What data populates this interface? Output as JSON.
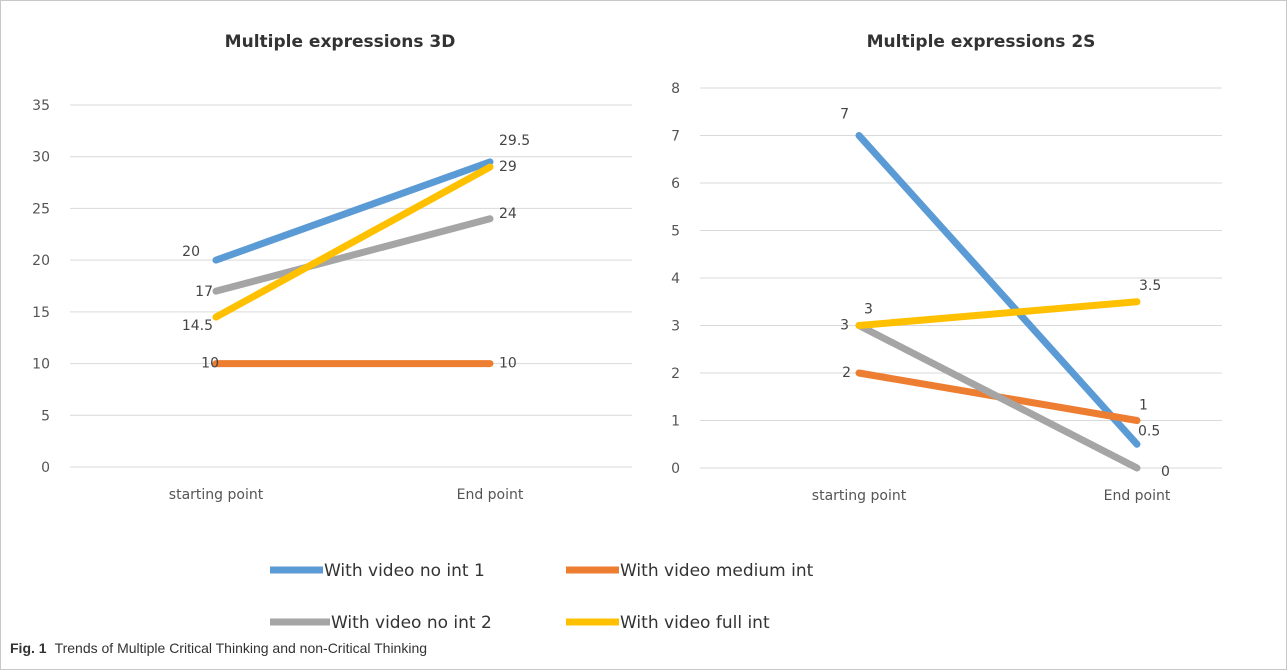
{
  "legend": [
    {
      "label": "With video no int 1",
      "color": "#5B9BD5"
    },
    {
      "label": "With video medium int",
      "color": "#ED7D31"
    },
    {
      "label": "With video no int 2",
      "color": "#A5A5A5"
    },
    {
      "label": "With video full int",
      "color": "#FFC000"
    }
  ],
  "caption": {
    "fig_label": "Fig. 1",
    "text": "Trends of Multiple Critical Thinking and non-Critical Thinking"
  },
  "chart_data": [
    {
      "type": "line",
      "title": "Multiple expressions 3D",
      "categories": [
        "starting point",
        "End point"
      ],
      "ylim": [
        0,
        35
      ],
      "yticks": [
        "0",
        "5",
        "10",
        "15",
        "20",
        "25",
        "30",
        "35"
      ],
      "grid": true,
      "series": [
        {
          "name": "With video no int 1",
          "values": [
            20,
            29.5
          ],
          "labels": [
            "20",
            "29.5"
          ],
          "color": "#5B9BD5"
        },
        {
          "name": "With video medium int",
          "values": [
            10,
            10
          ],
          "labels": [
            "10",
            "10"
          ],
          "color": "#ED7D31"
        },
        {
          "name": "With video no int 2",
          "values": [
            17,
            24
          ],
          "labels": [
            "17",
            "24"
          ],
          "color": "#A5A5A5"
        },
        {
          "name": "With video full int",
          "values": [
            14.5,
            29
          ],
          "labels": [
            "14.5",
            "29"
          ],
          "color": "#FFC000"
        }
      ]
    },
    {
      "type": "line",
      "title": "Multiple expressions 2S",
      "categories": [
        "starting point",
        "End point"
      ],
      "ylim": [
        0,
        8
      ],
      "yticks": [
        "0",
        "1",
        "2",
        "3",
        "4",
        "5",
        "6",
        "7",
        "8"
      ],
      "grid": true,
      "series": [
        {
          "name": "With video no int 1",
          "values": [
            7,
            0.5
          ],
          "labels": [
            "7",
            "0.5"
          ],
          "color": "#5B9BD5"
        },
        {
          "name": "With video medium int",
          "values": [
            2,
            1
          ],
          "labels": [
            "2",
            "1"
          ],
          "color": "#ED7D31"
        },
        {
          "name": "With video no int 2",
          "values": [
            3,
            0
          ],
          "labels": [
            "3",
            "0"
          ],
          "color": "#A5A5A5"
        },
        {
          "name": "With video full int",
          "values": [
            3,
            3.5
          ],
          "labels": [
            "3",
            "3.5"
          ],
          "color": "#FFC000"
        }
      ]
    }
  ]
}
